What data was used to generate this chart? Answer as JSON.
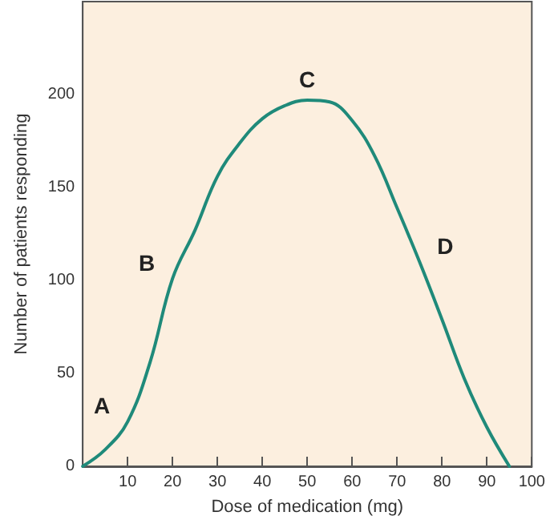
{
  "chart_data": {
    "type": "line",
    "xlabel": "Dose of medication (mg)",
    "ylabel": "Number of patients responding",
    "x": [
      0,
      5,
      10,
      15,
      20,
      25,
      30,
      35,
      40,
      45,
      50,
      55,
      60,
      65,
      70,
      75,
      80,
      85,
      90,
      95
    ],
    "series": [
      {
        "color": "#1f8a7a",
        "values": [
          0,
          9,
          24,
          56,
          101,
          127,
          156,
          174,
          187,
          194,
          197,
          196,
          186,
          167,
          139,
          110,
          79,
          47,
          21,
          0
        ]
      }
    ],
    "xlim": [
      0,
      100
    ],
    "xticks": [
      10,
      20,
      30,
      40,
      50,
      60,
      70,
      80,
      90,
      100
    ],
    "ylim": [
      0,
      250
    ],
    "yticks": [
      0,
      50,
      100,
      150,
      200
    ],
    "annotations": [
      {
        "text": "A",
        "x": 10,
        "y": 24
      },
      {
        "text": "B",
        "x": 20,
        "y": 101
      },
      {
        "text": "C",
        "x": 50,
        "y": 197
      },
      {
        "text": "D",
        "x": 75,
        "y": 110
      }
    ],
    "grid": false,
    "marker": "none",
    "line_style": "solid"
  }
}
